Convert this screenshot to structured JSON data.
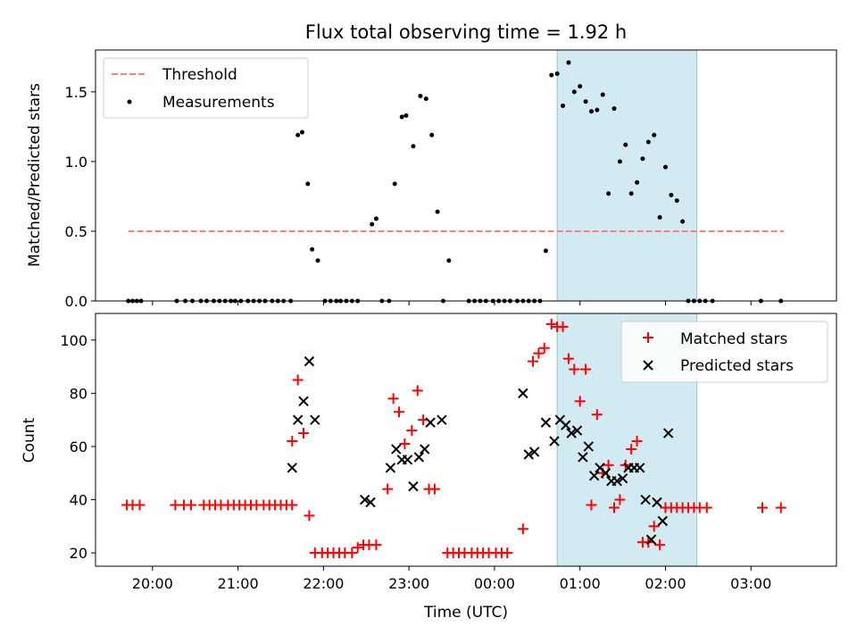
{
  "chart_data": {
    "type": "scatter",
    "title": "Flux total observing time = 1.92 h",
    "shaded_interval": [
      "00:44",
      "02:22"
    ],
    "shade_color": "#add8e6",
    "x_axis": {
      "label": "Time (UTC)",
      "range": [
        "19:20",
        "04:00"
      ],
      "ticks": [
        "20:00",
        "21:00",
        "22:00",
        "23:00",
        "00:00",
        "01:00",
        "02:00",
        "03:00"
      ]
    },
    "panels": [
      {
        "id": "ratio",
        "ylabel": "Matched/Predicted stars",
        "ylim": [
          0,
          1.8
        ],
        "yticks": [
          "0.0",
          "0.5",
          "1.0",
          "1.5"
        ],
        "legend": {
          "placement": "upper-left",
          "entries": [
            "Threshold",
            "Measurements"
          ]
        },
        "series": [
          {
            "name": "Threshold",
            "kind": "dashed-line",
            "color": "#ff7f7f",
            "points": [
              [
                "19:43",
                0.5
              ],
              [
                "03:23",
                0.5
              ]
            ]
          },
          {
            "name": "Measurements",
            "kind": "dot",
            "color": "#000000",
            "points": [
              [
                "19:43",
                0
              ],
              [
                "19:46",
                0
              ],
              [
                "19:49",
                0
              ],
              [
                "19:52",
                0
              ],
              [
                "20:17",
                0
              ],
              [
                "20:23",
                0
              ],
              [
                "20:28",
                0
              ],
              [
                "20:34",
                0
              ],
              [
                "20:38",
                0
              ],
              [
                "20:43",
                0
              ],
              [
                "20:47",
                0
              ],
              [
                "20:51",
                0
              ],
              [
                "20:55",
                0
              ],
              [
                "20:58",
                0
              ],
              [
                "21:02",
                0
              ],
              [
                "21:07",
                0
              ],
              [
                "21:11",
                0
              ],
              [
                "21:15",
                0
              ],
              [
                "21:19",
                0
              ],
              [
                "21:24",
                0
              ],
              [
                "21:28",
                0
              ],
              [
                "21:32",
                0
              ],
              [
                "21:37",
                0
              ],
              [
                "21:42",
                1.19
              ],
              [
                "21:45",
                1.21
              ],
              [
                "21:49",
                0.84
              ],
              [
                "21:52",
                0.37
              ],
              [
                "21:56",
                0.29
              ],
              [
                "22:01",
                0
              ],
              [
                "22:05",
                0
              ],
              [
                "22:09",
                0
              ],
              [
                "22:12",
                0
              ],
              [
                "22:16",
                0
              ],
              [
                "22:20",
                0
              ],
              [
                "22:24",
                0
              ],
              [
                "22:34",
                0.55
              ],
              [
                "22:37",
                0.59
              ],
              [
                "22:41",
                0
              ],
              [
                "22:46",
                0
              ],
              [
                "22:50",
                0.84
              ],
              [
                "22:55",
                1.32
              ],
              [
                "22:58",
                1.33
              ],
              [
                "23:03",
                1.11
              ],
              [
                "23:08",
                1.47
              ],
              [
                "23:12",
                1.45
              ],
              [
                "23:16",
                1.19
              ],
              [
                "23:20",
                0.64
              ],
              [
                "23:24",
                0
              ],
              [
                "23:28",
                0.29
              ],
              [
                "23:42",
                0
              ],
              [
                "23:46",
                0
              ],
              [
                "23:50",
                0
              ],
              [
                "23:54",
                0
              ],
              [
                "23:59",
                0
              ],
              [
                "00:03",
                0
              ],
              [
                "00:07",
                0
              ],
              [
                "00:11",
                0
              ],
              [
                "00:16",
                0
              ],
              [
                "00:20",
                0
              ],
              [
                "00:24",
                0
              ],
              [
                "00:28",
                0
              ],
              [
                "00:32",
                0
              ],
              [
                "00:36",
                0.36
              ],
              [
                "00:40",
                1.62
              ],
              [
                "00:44",
                1.63
              ],
              [
                "00:48",
                1.4
              ],
              [
                "00:52",
                1.71
              ],
              [
                "00:56",
                1.5
              ],
              [
                "01:00",
                1.54
              ],
              [
                "01:04",
                1.43
              ],
              [
                "01:08",
                1.36
              ],
              [
                "01:12",
                1.37
              ],
              [
                "01:16",
                1.48
              ],
              [
                "01:20",
                0.77
              ],
              [
                "01:24",
                1.38
              ],
              [
                "01:28",
                1.0
              ],
              [
                "01:32",
                1.12
              ],
              [
                "01:36",
                0.77
              ],
              [
                "01:40",
                0.85
              ],
              [
                "01:44",
                1.02
              ],
              [
                "01:48",
                1.14
              ],
              [
                "01:52",
                1.19
              ],
              [
                "01:56",
                0.6
              ],
              [
                "02:00",
                0.96
              ],
              [
                "02:04",
                0.76
              ],
              [
                "02:08",
                0.72
              ],
              [
                "02:12",
                0.57
              ],
              [
                "02:16",
                0
              ],
              [
                "02:20",
                0
              ],
              [
                "02:24",
                0
              ],
              [
                "02:28",
                0
              ],
              [
                "02:33",
                0
              ],
              [
                "03:07",
                0
              ],
              [
                "03:21",
                0
              ]
            ]
          }
        ]
      },
      {
        "id": "counts",
        "ylabel": "Count",
        "ylim": [
          15,
          110
        ],
        "yticks": [
          "20",
          "40",
          "60",
          "80",
          "100"
        ],
        "legend": {
          "placement": "upper-right",
          "entries": [
            "Matched stars",
            "Predicted stars"
          ]
        },
        "series": [
          {
            "name": "Matched stars",
            "kind": "plus",
            "color": "#ff0000",
            "points": [
              [
                "19:42",
                38
              ],
              [
                "19:46",
                38
              ],
              [
                "19:51",
                38
              ],
              [
                "20:16",
                38
              ],
              [
                "20:22",
                38
              ],
              [
                "20:27",
                38
              ],
              [
                "20:36",
                38
              ],
              [
                "20:40",
                38
              ],
              [
                "20:44",
                38
              ],
              [
                "20:48",
                38
              ],
              [
                "20:53",
                38
              ],
              [
                "20:57",
                38
              ],
              [
                "21:01",
                38
              ],
              [
                "21:05",
                38
              ],
              [
                "21:09",
                38
              ],
              [
                "21:13",
                38
              ],
              [
                "21:18",
                38
              ],
              [
                "21:22",
                38
              ],
              [
                "21:26",
                38
              ],
              [
                "21:30",
                38
              ],
              [
                "21:34",
                38
              ],
              [
                "21:38",
                38
              ],
              [
                "21:38",
                62
              ],
              [
                "21:42",
                85
              ],
              [
                "21:46",
                65
              ],
              [
                "21:50",
                34
              ],
              [
                "21:54",
                20
              ],
              [
                "21:59",
                20
              ],
              [
                "22:03",
                20
              ],
              [
                "22:07",
                20
              ],
              [
                "22:11",
                20
              ],
              [
                "22:15",
                20
              ],
              [
                "22:20",
                20
              ],
              [
                "22:24",
                22
              ],
              [
                "22:28",
                23
              ],
              [
                "22:32",
                23
              ],
              [
                "22:37",
                23
              ],
              [
                "22:45",
                44
              ],
              [
                "22:49",
                78
              ],
              [
                "22:53",
                73
              ],
              [
                "22:57",
                61
              ],
              [
                "23:02",
                66
              ],
              [
                "23:06",
                81
              ],
              [
                "23:10",
                70
              ],
              [
                "23:14",
                44
              ],
              [
                "23:18",
                44
              ],
              [
                "23:27",
                20
              ],
              [
                "23:31",
                20
              ],
              [
                "23:35",
                20
              ],
              [
                "23:39",
                20
              ],
              [
                "23:44",
                20
              ],
              [
                "23:48",
                20
              ],
              [
                "23:52",
                20
              ],
              [
                "23:56",
                20
              ],
              [
                "00:01",
                20
              ],
              [
                "00:05",
                20
              ],
              [
                "00:09",
                20
              ],
              [
                "00:20",
                29
              ],
              [
                "00:27",
                92
              ],
              [
                "00:31",
                95
              ],
              [
                "00:35",
                97
              ],
              [
                "00:40",
                106
              ],
              [
                "00:44",
                105
              ],
              [
                "00:48",
                105
              ],
              [
                "00:52",
                93
              ],
              [
                "00:56",
                89
              ],
              [
                "01:00",
                77
              ],
              [
                "01:04",
                89
              ],
              [
                "01:08",
                38
              ],
              [
                "01:12",
                72
              ],
              [
                "01:16",
                50
              ],
              [
                "01:20",
                53
              ],
              [
                "01:24",
                37
              ],
              [
                "01:28",
                40
              ],
              [
                "01:32",
                53
              ],
              [
                "01:36",
                59
              ],
              [
                "01:40",
                62
              ],
              [
                "01:44",
                24
              ],
              [
                "01:48",
                24
              ],
              [
                "01:52",
                30
              ],
              [
                "01:56",
                23
              ],
              [
                "02:00",
                37
              ],
              [
                "02:04",
                37
              ],
              [
                "02:08",
                37
              ],
              [
                "02:12",
                37
              ],
              [
                "02:16",
                37
              ],
              [
                "02:20",
                37
              ],
              [
                "02:24",
                37
              ],
              [
                "02:29",
                37
              ],
              [
                "03:08",
                37
              ],
              [
                "03:21",
                37
              ]
            ]
          },
          {
            "name": "Predicted stars",
            "kind": "x",
            "color": "#000000",
            "points": [
              [
                "21:38",
                52
              ],
              [
                "21:42",
                70
              ],
              [
                "21:46",
                77
              ],
              [
                "21:50",
                92
              ],
              [
                "21:54",
                70
              ],
              [
                "22:29",
                40
              ],
              [
                "22:33",
                39
              ],
              [
                "22:47",
                52
              ],
              [
                "22:51",
                59
              ],
              [
                "22:55",
                55
              ],
              [
                "22:59",
                55
              ],
              [
                "23:03",
                45
              ],
              [
                "23:07",
                56
              ],
              [
                "23:11",
                59
              ],
              [
                "23:15",
                69
              ],
              [
                "23:23",
                70
              ],
              [
                "00:20",
                80
              ],
              [
                "00:24",
                57
              ],
              [
                "00:28",
                58
              ],
              [
                "00:36",
                69
              ],
              [
                "00:42",
                62
              ],
              [
                "00:46",
                70
              ],
              [
                "00:50",
                68
              ],
              [
                "00:54",
                65
              ],
              [
                "00:58",
                66
              ],
              [
                "01:02",
                56
              ],
              [
                "01:06",
                60
              ],
              [
                "01:10",
                49
              ],
              [
                "01:14",
                52
              ],
              [
                "01:18",
                50
              ],
              [
                "01:22",
                47
              ],
              [
                "01:26",
                47
              ],
              [
                "01:30",
                48
              ],
              [
                "01:34",
                52
              ],
              [
                "01:38",
                52
              ],
              [
                "01:42",
                52
              ],
              [
                "01:46",
                40
              ],
              [
                "01:50",
                25
              ],
              [
                "01:54",
                39
              ],
              [
                "01:58",
                32
              ],
              [
                "02:02",
                65
              ]
            ]
          }
        ]
      }
    ]
  }
}
